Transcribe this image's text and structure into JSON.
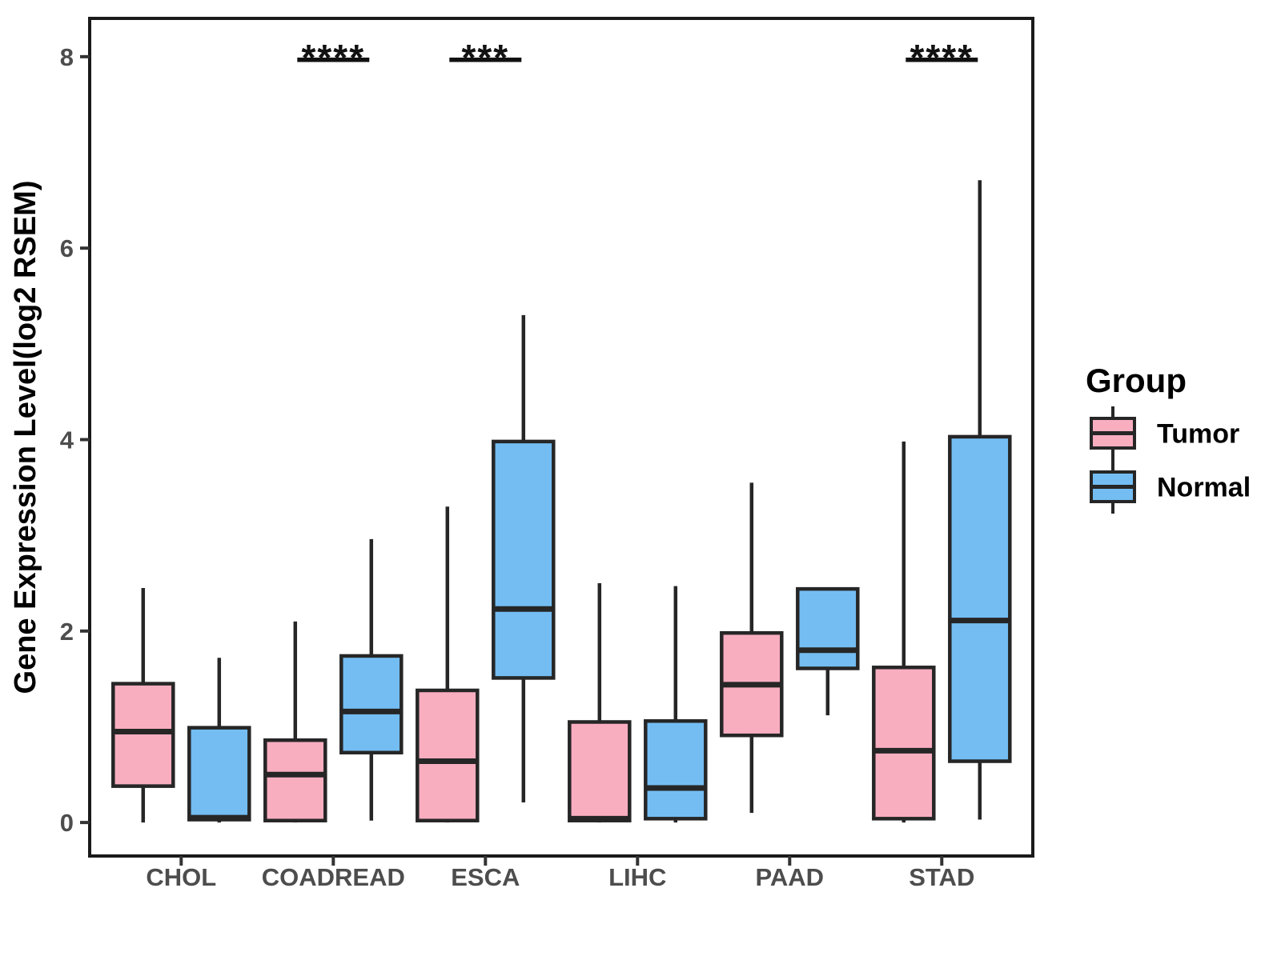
{
  "chart_data": {
    "type": "grouped_boxplot",
    "title": "",
    "xlabel": "",
    "ylabel": "Gene Expression Level(log2 RSEM)",
    "ylim": [
      -0.35,
      8.4
    ],
    "yticks": [
      0,
      2,
      4,
      6,
      8
    ],
    "ytick_labels": [
      "0",
      "2",
      "4",
      "6",
      "8"
    ],
    "grid": "off",
    "legend_position": "right",
    "categories": [
      "CHOL",
      "COADREAD",
      "ESCA",
      "LIHC",
      "PAAD",
      "STAD"
    ],
    "series": [
      {
        "name": "Tumor",
        "color": "#F9AEC0",
        "boxes": [
          {
            "low": 0.0,
            "q1": 0.38,
            "median": 0.95,
            "q3": 1.45,
            "high": 2.45
          },
          {
            "low": 0.0,
            "q1": 0.02,
            "median": 0.5,
            "q3": 0.86,
            "high": 2.1
          },
          {
            "low": 0.0,
            "q1": 0.02,
            "median": 0.64,
            "q3": 1.38,
            "high": 3.3
          },
          {
            "low": 0.0,
            "q1": 0.02,
            "median": 0.04,
            "q3": 1.05,
            "high": 2.5
          },
          {
            "low": 0.1,
            "q1": 0.91,
            "median": 1.44,
            "q3": 1.98,
            "high": 3.55
          },
          {
            "low": 0.0,
            "q1": 0.04,
            "median": 0.75,
            "q3": 1.62,
            "high": 3.98
          }
        ]
      },
      {
        "name": "Normal",
        "color": "#73BDF2",
        "boxes": [
          {
            "low": 0.0,
            "q1": 0.03,
            "median": 0.05,
            "q3": 0.99,
            "high": 1.72
          },
          {
            "low": 0.02,
            "q1": 0.73,
            "median": 1.16,
            "q3": 1.74,
            "high": 2.96
          },
          {
            "low": 0.21,
            "q1": 1.51,
            "median": 2.23,
            "q3": 3.98,
            "high": 5.3
          },
          {
            "low": 0.0,
            "q1": 0.04,
            "median": 0.36,
            "q3": 1.06,
            "high": 2.47
          },
          {
            "low": 1.12,
            "q1": 1.61,
            "median": 1.8,
            "q3": 2.44,
            "high": 2.44
          },
          {
            "low": 0.03,
            "q1": 0.64,
            "median": 2.11,
            "q3": 4.03,
            "high": 6.71
          }
        ]
      }
    ],
    "annotations": [
      {
        "category": "COADREAD",
        "label": "****"
      },
      {
        "category": "ESCA",
        "label": "***"
      },
      {
        "category": "STAD",
        "label": "****"
      }
    ],
    "legend": {
      "title": "Group",
      "entries": [
        "Tumor",
        "Normal"
      ]
    },
    "colors": {
      "tumor_fill": "#F9AEC0",
      "normal_fill": "#73BDF2",
      "box_stroke": "#262626",
      "axis_text": "#4D4D4D",
      "label_text": "#000000",
      "panel_border": "#1A1A1A",
      "background": "#FFFFFF"
    }
  }
}
